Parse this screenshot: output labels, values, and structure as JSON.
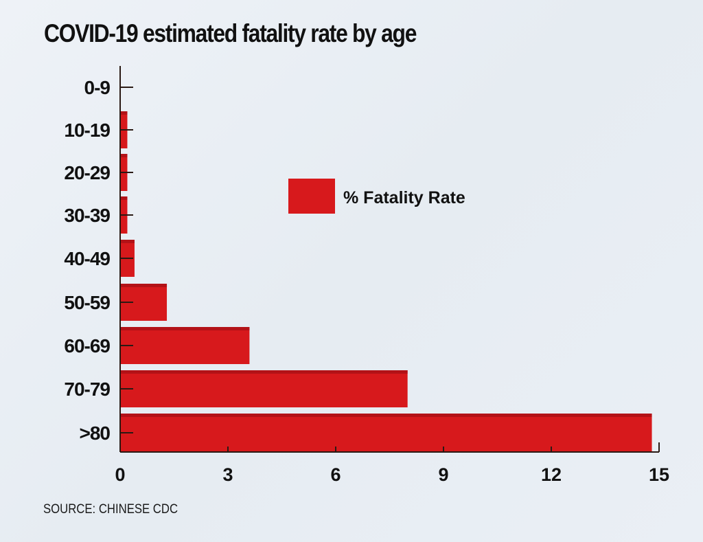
{
  "chart_data": {
    "type": "bar",
    "orientation": "horizontal",
    "title": "COVID-19 estimated fatality rate by age",
    "categories": [
      "0-9",
      "10-19",
      "20-29",
      "30-39",
      "40-49",
      "50-59",
      "60-69",
      "70-79",
      ">80"
    ],
    "series": [
      {
        "name": "% Fatality Rate",
        "values": [
          0,
          0.2,
          0.2,
          0.2,
          0.4,
          1.3,
          3.6,
          8.0,
          14.8
        ]
      }
    ],
    "xlabel": "",
    "ylabel": "",
    "xlim": [
      0,
      15
    ],
    "xticks": [
      "0",
      "3",
      "6",
      "9",
      "12",
      "15"
    ],
    "legend_position": "center",
    "grid": false,
    "colors": {
      "bar": "#d7191c",
      "bar_top": "#b31217",
      "axis": "#2a1a14",
      "text": "#111111"
    }
  },
  "source": "SOURCE: CHINESE CDC"
}
